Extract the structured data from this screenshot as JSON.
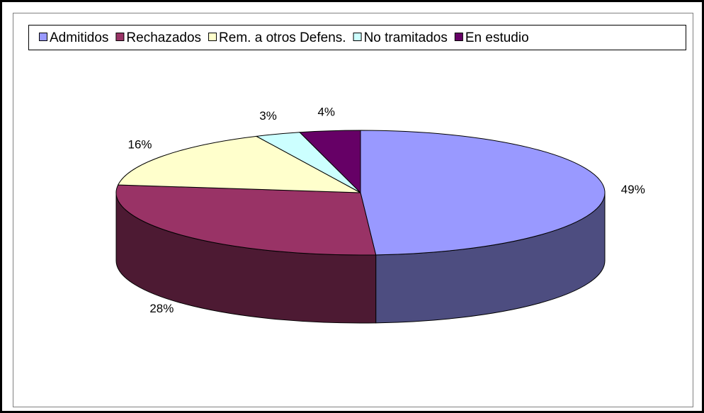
{
  "chart_data": {
    "type": "pie",
    "categories": [
      "Admitidos",
      "Rechazados",
      "Rem. a otros Defens.",
      "No tramitados",
      "En estudio"
    ],
    "values": [
      49,
      28,
      16,
      3,
      4
    ],
    "value_labels": [
      "49%",
      "28%",
      "16%",
      "3%",
      "4%"
    ],
    "colors": [
      "#9999ff",
      "#993366",
      "#ffffcc",
      "#ccffff",
      "#660066"
    ],
    "legend": "top"
  }
}
